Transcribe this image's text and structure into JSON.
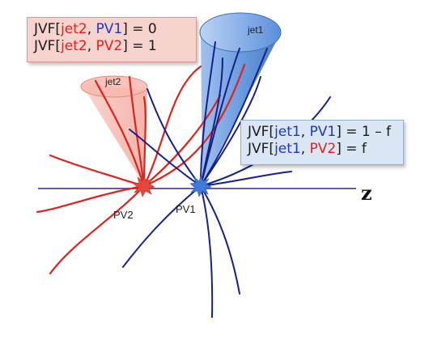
{
  "labels": {
    "jet1": "jet1",
    "jet2": "jet2",
    "pv1": "PV1",
    "pv2": "PV2",
    "axis": "z"
  },
  "box_jet2": {
    "line1": {
      "prefix": "JVF[",
      "jet": "jet2",
      "sep": ", ",
      "pv": "PV1",
      "suffix": "] = 0"
    },
    "line2": {
      "prefix": "JVF[",
      "jet": "jet2",
      "sep": ", ",
      "pv": "PV2",
      "suffix": "] = 1"
    }
  },
  "box_jet1": {
    "line1": {
      "prefix": "JVF[",
      "jet": "jet1",
      "sep": ", ",
      "pv": "PV1",
      "suffix": "] = 1 – f"
    },
    "line2": {
      "prefix": "JVF[",
      "jet": "jet1",
      "sep": ", ",
      "pv": "PV2",
      "suffix": "] = f"
    }
  },
  "colors": {
    "pv1_tracks": "#14218a",
    "pv2_tracks": "#e0221b",
    "jet1_cone": "#4a86d8",
    "jet2_cone": "#f4a89e",
    "beam_axis": "#6a5a9a",
    "box_jet2_bg": "#f6d3cc",
    "box_jet1_bg": "#dbe6f4"
  }
}
